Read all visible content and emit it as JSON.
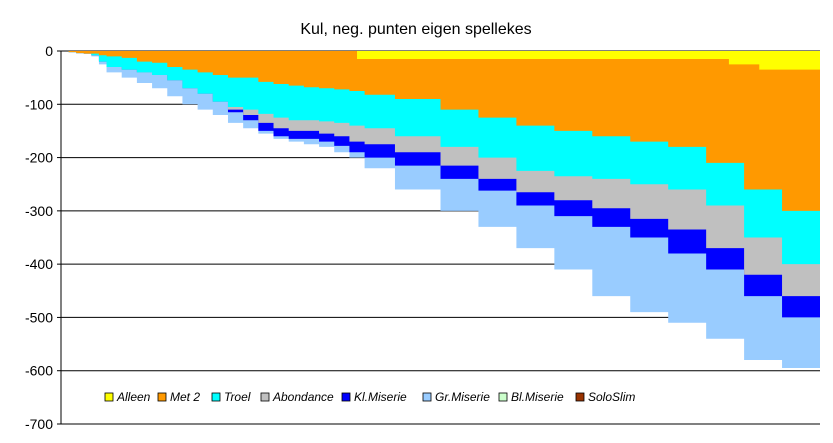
{
  "chart_data": {
    "type": "area",
    "title": "Kul, neg. punten eigen spellekes",
    "xlabel": "",
    "ylabel": "",
    "ylim": [
      -700,
      0
    ],
    "yticks": [
      0,
      -100,
      -200,
      -300,
      -400,
      -500,
      -600,
      -700
    ],
    "grid": true,
    "stacked": true,
    "x_count": 100,
    "legend_position": "bottom-inside",
    "series": [
      {
        "name": "Alleen",
        "color": "#ffff00",
        "points": [
          [
            0,
            0
          ],
          [
            39,
            0
          ],
          [
            39,
            -15
          ],
          [
            88,
            -15
          ],
          [
            88,
            -25
          ],
          [
            92,
            -25
          ],
          [
            92,
            -35
          ],
          [
            100,
            -35
          ]
        ]
      },
      {
        "name": "Met 2",
        "color": "#ff9900",
        "points": [
          [
            0,
            0
          ],
          [
            1,
            -2
          ],
          [
            2,
            -4
          ],
          [
            3,
            -5
          ],
          [
            4,
            -5
          ],
          [
            5,
            -8
          ],
          [
            6,
            -10
          ],
          [
            8,
            -13
          ],
          [
            10,
            -20
          ],
          [
            12,
            -22
          ],
          [
            14,
            -30
          ],
          [
            16,
            -35
          ],
          [
            18,
            -40
          ],
          [
            20,
            -45
          ],
          [
            22,
            -50
          ],
          [
            24,
            -50
          ],
          [
            26,
            -58
          ],
          [
            28,
            -62
          ],
          [
            30,
            -65
          ],
          [
            32,
            -68
          ],
          [
            34,
            -70
          ],
          [
            36,
            -72
          ],
          [
            38,
            -75
          ],
          [
            40,
            -82
          ],
          [
            44,
            -90
          ],
          [
            50,
            -110
          ],
          [
            55,
            -125
          ],
          [
            60,
            -140
          ],
          [
            65,
            -150
          ],
          [
            70,
            -160
          ],
          [
            75,
            -170
          ],
          [
            80,
            -180
          ],
          [
            85,
            -210
          ],
          [
            90,
            -260
          ],
          [
            95,
            -300
          ],
          [
            100,
            -320
          ]
        ]
      },
      {
        "name": "Troel",
        "color": "#00ffff",
        "points": [
          [
            0,
            0
          ],
          [
            1,
            -2
          ],
          [
            2,
            -4
          ],
          [
            3,
            -5
          ],
          [
            4,
            -8
          ],
          [
            5,
            -20
          ],
          [
            6,
            -30
          ],
          [
            8,
            -35
          ],
          [
            10,
            -40
          ],
          [
            12,
            -45
          ],
          [
            14,
            -55
          ],
          [
            16,
            -70
          ],
          [
            18,
            -80
          ],
          [
            20,
            -95
          ],
          [
            22,
            -105
          ],
          [
            24,
            -110
          ],
          [
            26,
            -118
          ],
          [
            28,
            -125
          ],
          [
            30,
            -130
          ],
          [
            32,
            -130
          ],
          [
            34,
            -132
          ],
          [
            36,
            -135
          ],
          [
            38,
            -140
          ],
          [
            40,
            -145
          ],
          [
            44,
            -160
          ],
          [
            50,
            -180
          ],
          [
            55,
            -200
          ],
          [
            60,
            -225
          ],
          [
            65,
            -235
          ],
          [
            70,
            -240
          ],
          [
            75,
            -250
          ],
          [
            80,
            -260
          ],
          [
            85,
            -290
          ],
          [
            90,
            -350
          ],
          [
            95,
            -400
          ],
          [
            100,
            -430
          ]
        ]
      },
      {
        "name": "Abondance",
        "color": "#c0c0c0",
        "points": [
          [
            0,
            0
          ],
          [
            1,
            -2
          ],
          [
            2,
            -4
          ],
          [
            3,
            -5
          ],
          [
            4,
            -8
          ],
          [
            5,
            -20
          ],
          [
            6,
            -30
          ],
          [
            8,
            -35
          ],
          [
            10,
            -40
          ],
          [
            12,
            -45
          ],
          [
            14,
            -55
          ],
          [
            16,
            -70
          ],
          [
            18,
            -80
          ],
          [
            20,
            -95
          ],
          [
            22,
            -110
          ],
          [
            24,
            -120
          ],
          [
            26,
            -135
          ],
          [
            28,
            -145
          ],
          [
            30,
            -150
          ],
          [
            32,
            -150
          ],
          [
            34,
            -155
          ],
          [
            36,
            -160
          ],
          [
            38,
            -170
          ],
          [
            40,
            -175
          ],
          [
            44,
            -190
          ],
          [
            50,
            -215
          ],
          [
            55,
            -240
          ],
          [
            60,
            -265
          ],
          [
            65,
            -280
          ],
          [
            70,
            -295
          ],
          [
            75,
            -315
          ],
          [
            80,
            -335
          ],
          [
            85,
            -370
          ],
          [
            90,
            -420
          ],
          [
            95,
            -460
          ],
          [
            100,
            -490
          ]
        ]
      },
      {
        "name": "Kl.Miserie",
        "color": "#0000ff",
        "points": [
          [
            0,
            0
          ],
          [
            1,
            -2
          ],
          [
            2,
            -4
          ],
          [
            3,
            -5
          ],
          [
            4,
            -8
          ],
          [
            5,
            -20
          ],
          [
            6,
            -30
          ],
          [
            8,
            -35
          ],
          [
            10,
            -40
          ],
          [
            12,
            -45
          ],
          [
            14,
            -55
          ],
          [
            16,
            -70
          ],
          [
            18,
            -80
          ],
          [
            20,
            -95
          ],
          [
            22,
            -115
          ],
          [
            24,
            -130
          ],
          [
            26,
            -150
          ],
          [
            28,
            -160
          ],
          [
            30,
            -165
          ],
          [
            32,
            -165
          ],
          [
            34,
            -170
          ],
          [
            36,
            -178
          ],
          [
            38,
            -190
          ],
          [
            40,
            -200
          ],
          [
            44,
            -215
          ],
          [
            50,
            -240
          ],
          [
            55,
            -262
          ],
          [
            60,
            -290
          ],
          [
            65,
            -310
          ],
          [
            70,
            -330
          ],
          [
            75,
            -350
          ],
          [
            80,
            -380
          ],
          [
            85,
            -410
          ],
          [
            90,
            -460
          ],
          [
            95,
            -500
          ],
          [
            100,
            -525
          ]
        ]
      },
      {
        "name": "Gr.Miserie",
        "color": "#99ccff",
        "points": [
          [
            0,
            0
          ],
          [
            1,
            -2
          ],
          [
            2,
            -4
          ],
          [
            3,
            -5
          ],
          [
            4,
            -10
          ],
          [
            5,
            -25
          ],
          [
            6,
            -40
          ],
          [
            8,
            -50
          ],
          [
            10,
            -60
          ],
          [
            12,
            -70
          ],
          [
            14,
            -85
          ],
          [
            16,
            -100
          ],
          [
            18,
            -110
          ],
          [
            20,
            -120
          ],
          [
            22,
            -135
          ],
          [
            24,
            -145
          ],
          [
            26,
            -155
          ],
          [
            28,
            -165
          ],
          [
            30,
            -170
          ],
          [
            32,
            -175
          ],
          [
            34,
            -180
          ],
          [
            36,
            -190
          ],
          [
            38,
            -200
          ],
          [
            40,
            -220
          ],
          [
            44,
            -260
          ],
          [
            50,
            -300
          ],
          [
            55,
            -330
          ],
          [
            60,
            -370
          ],
          [
            65,
            -410
          ],
          [
            70,
            -460
          ],
          [
            75,
            -490
          ],
          [
            80,
            -510
          ],
          [
            85,
            -540
          ],
          [
            90,
            -580
          ],
          [
            95,
            -595
          ],
          [
            100,
            -600
          ]
        ]
      },
      {
        "name": "Bl.Miserie",
        "color": "#ccffcc",
        "points": []
      },
      {
        "name": "SoloSlim",
        "color": "#993300",
        "points": []
      }
    ]
  }
}
